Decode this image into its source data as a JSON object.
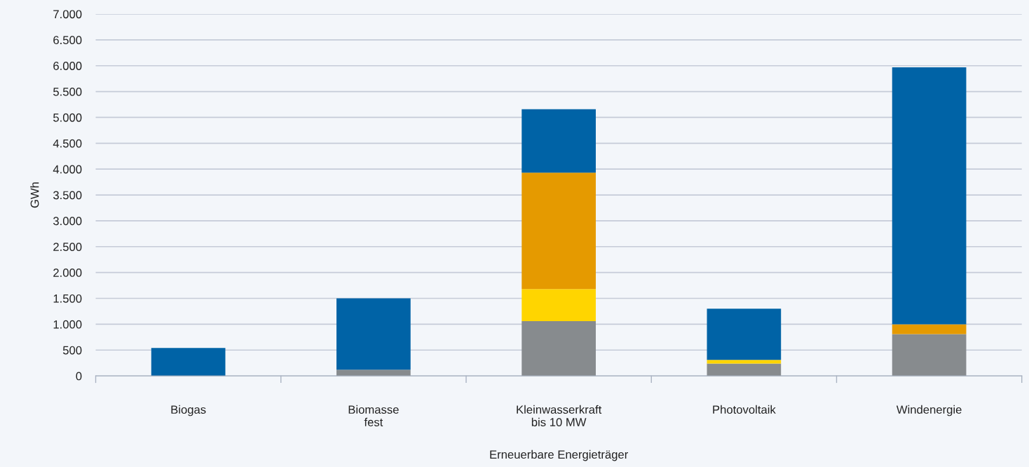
{
  "chart_data": {
    "type": "bar",
    "stacked": true,
    "xlabel": "Erneuerbare Energieträger",
    "ylabel": "GWh",
    "categories": [
      "Biogas",
      "Biomasse\nfest",
      "Kleinwasserkraft\nbis 10 MW",
      "Photovoltaik",
      "Windenergie"
    ],
    "series": [
      {
        "color": "#878b8e",
        "values": [
          0,
          120,
          1060,
          240,
          810
        ]
      },
      {
        "color": "#ffd500",
        "values": [
          0,
          0,
          620,
          70,
          0
        ]
      },
      {
        "color": "#e59a00",
        "values": [
          0,
          0,
          2250,
          0,
          190
        ]
      },
      {
        "color": "#0063a6",
        "values": [
          540,
          1380,
          1230,
          990,
          4970
        ]
      }
    ],
    "ylim": [
      0,
      7000
    ],
    "yticks": [
      0,
      500,
      {
        "value": 1000,
        "label": "1.000"
      },
      {
        "value": 1500,
        "label": "1.500"
      },
      {
        "value": 2000,
        "label": "2.000"
      },
      {
        "value": 2500,
        "label": "2.500"
      },
      {
        "value": 3000,
        "label": "3.000"
      },
      {
        "value": 3500,
        "label": "3.500"
      },
      {
        "value": 4000,
        "label": "4.000"
      },
      {
        "value": 4500,
        "label": "4.500"
      },
      {
        "value": 5000,
        "label": "5.000"
      },
      {
        "value": 5500,
        "label": "5.500"
      },
      {
        "value": 6000,
        "label": "6.000"
      },
      {
        "value": 6500,
        "label": "6.500"
      },
      {
        "value": 7000,
        "label": "7.000"
      }
    ],
    "grid": "y",
    "legend": false
  }
}
